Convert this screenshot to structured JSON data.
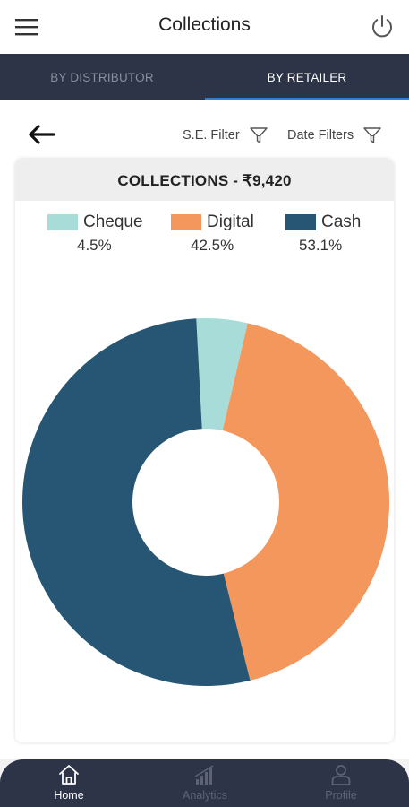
{
  "header": {
    "title": "Collections"
  },
  "icons": {
    "menu": "hamburger-menu-icon",
    "power": "power-icon",
    "back": "back-arrow-icon",
    "filter": "funnel-filter-icon"
  },
  "tabs": [
    {
      "label": "BY DISTRIBUTOR",
      "active": false
    },
    {
      "label": "BY RETAILER",
      "active": true
    }
  ],
  "filters": {
    "se_filter_label": "S.E. Filter",
    "date_filter_label": "Date Filters"
  },
  "card": {
    "title": "COLLECTIONS - ₹9,420"
  },
  "colors": {
    "cheque": "#a8dcd9",
    "digital": "#f4975c",
    "cash": "#265673",
    "nav_bg": "#2d3447",
    "tab_indicator": "#2f80d1"
  },
  "chart_data": {
    "type": "pie",
    "title": "COLLECTIONS - ₹9,420",
    "hole_ratio": 0.4,
    "start_angle_deg": -3,
    "legend_position": "top",
    "series": [
      {
        "name": "Cheque",
        "value": 4.5,
        "label": "4.5%",
        "color": "#a8dcd9"
      },
      {
        "name": "Digital",
        "value": 42.5,
        "label": "42.5%",
        "color": "#f4975c"
      },
      {
        "name": "Cash",
        "value": 53.1,
        "label": "53.1%",
        "color": "#265673"
      }
    ]
  },
  "bottom_nav": [
    {
      "label": "Home",
      "icon": "home-icon",
      "active": true
    },
    {
      "label": "Analytics",
      "icon": "bar-chart-icon",
      "active": false
    },
    {
      "label": "Profile",
      "icon": "user-icon",
      "active": false
    }
  ]
}
